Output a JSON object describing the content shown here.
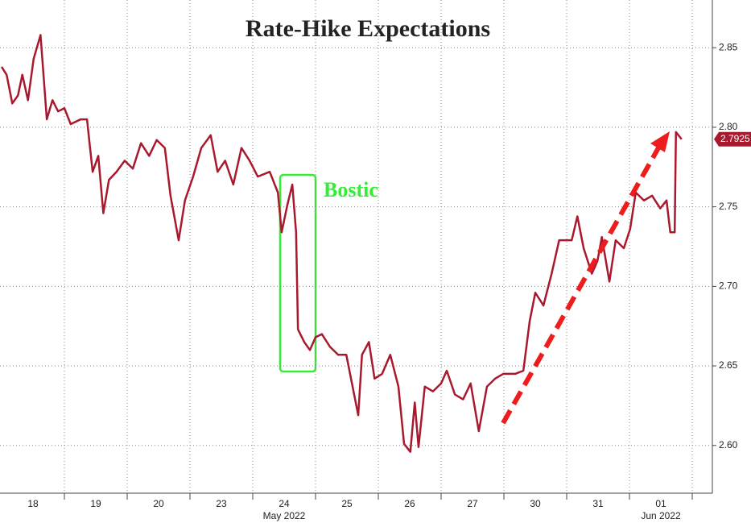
{
  "chart_data": {
    "type": "line",
    "title": "Rate-Hike Expectations",
    "annotation": "Bostic",
    "xlim": [
      0,
      11.32
    ],
    "xticks": [
      {
        "value": 0.5,
        "label": "18"
      },
      {
        "value": 1.5,
        "label": "19"
      },
      {
        "value": 2.5,
        "label": "20"
      },
      {
        "value": 3.5,
        "label": "23"
      },
      {
        "value": 4.5,
        "label": "24"
      },
      {
        "value": 5.5,
        "label": "25"
      },
      {
        "value": 6.5,
        "label": "26"
      },
      {
        "value": 7.5,
        "label": "27"
      },
      {
        "value": 8.5,
        "label": "30"
      },
      {
        "value": 9.5,
        "label": "31"
      },
      {
        "value": 10.5,
        "label": "01"
      }
    ],
    "month_labels": [
      {
        "value": 4.5,
        "label": "May 2022"
      },
      {
        "value": 10.5,
        "label": "Jun 2022"
      }
    ],
    "xgrid": [
      1,
      2,
      3,
      4,
      5,
      6,
      7,
      8,
      9,
      10,
      11
    ],
    "ylim": [
      2.57,
      2.88
    ],
    "yticks": [
      {
        "value": 2.6,
        "label": "2.60"
      },
      {
        "value": 2.65,
        "label": "2.65"
      },
      {
        "value": 2.7,
        "label": "2.70"
      },
      {
        "value": 2.75,
        "label": "2.75"
      },
      {
        "value": 2.8,
        "label": "2.80"
      },
      {
        "value": 2.85,
        "label": "2.85"
      }
    ],
    "grid": true,
    "series": [
      {
        "color": "#a8192e",
        "x": [
          0,
          0.08,
          0.17,
          0.26,
          0.33,
          0.42,
          0.51,
          0.62,
          0.72,
          0.81,
          0.9,
          1.0,
          1.1,
          1.26,
          1.36,
          1.45,
          1.54,
          1.62,
          1.71,
          1.83,
          1.96,
          2.09,
          2.22,
          2.35,
          2.47,
          2.6,
          2.69,
          2.82,
          2.92,
          3.05,
          3.18,
          3.33,
          3.44,
          3.56,
          3.69,
          3.82,
          3.95,
          4.08,
          4.27,
          4.4,
          4.46,
          4.55,
          4.63,
          4.69,
          4.72,
          4.82,
          4.91,
          5.0,
          5.1,
          5.23,
          5.36,
          5.49,
          5.59,
          5.68,
          5.74,
          5.85,
          5.94,
          6.06,
          6.19,
          6.32,
          6.41,
          6.51,
          6.58,
          6.64,
          6.74,
          6.87,
          7.0,
          7.09,
          7.22,
          7.35,
          7.47,
          7.6,
          7.73,
          7.86,
          7.99,
          8.18,
          8.31,
          8.41,
          8.5,
          8.63,
          8.76,
          8.88,
          9.08,
          9.17,
          9.27,
          9.4,
          9.49,
          9.56,
          9.68,
          9.78,
          9.91,
          10.01,
          10.1,
          10.23,
          10.36,
          10.49,
          10.59,
          10.65,
          10.72,
          10.74,
          10.83
        ],
        "values": [
          2.838,
          2.833,
          2.815,
          2.82,
          2.833,
          2.817,
          2.843,
          2.858,
          2.805,
          2.817,
          2.81,
          2.812,
          2.802,
          2.805,
          2.805,
          2.772,
          2.782,
          2.746,
          2.767,
          2.772,
          2.779,
          2.774,
          2.79,
          2.782,
          2.792,
          2.787,
          2.757,
          2.729,
          2.754,
          2.769,
          2.787,
          2.795,
          2.772,
          2.779,
          2.764,
          2.787,
          2.779,
          2.769,
          2.772,
          2.759,
          2.734,
          2.751,
          2.764,
          2.734,
          2.673,
          2.665,
          2.66,
          2.668,
          2.67,
          2.662,
          2.657,
          2.657,
          2.637,
          2.619,
          2.657,
          2.665,
          2.642,
          2.645,
          2.657,
          2.637,
          2.601,
          2.596,
          2.627,
          2.599,
          2.637,
          2.634,
          2.639,
          2.647,
          2.632,
          2.629,
          2.639,
          2.609,
          2.637,
          2.642,
          2.645,
          2.645,
          2.647,
          2.678,
          2.696,
          2.688,
          2.708,
          2.729,
          2.729,
          2.744,
          2.724,
          2.708,
          2.716,
          2.731,
          2.703,
          2.729,
          2.724,
          2.736,
          2.759,
          2.754,
          2.757,
          2.749,
          2.754,
          2.734,
          2.734,
          2.797,
          2.7925
        ]
      }
    ]
  }
}
